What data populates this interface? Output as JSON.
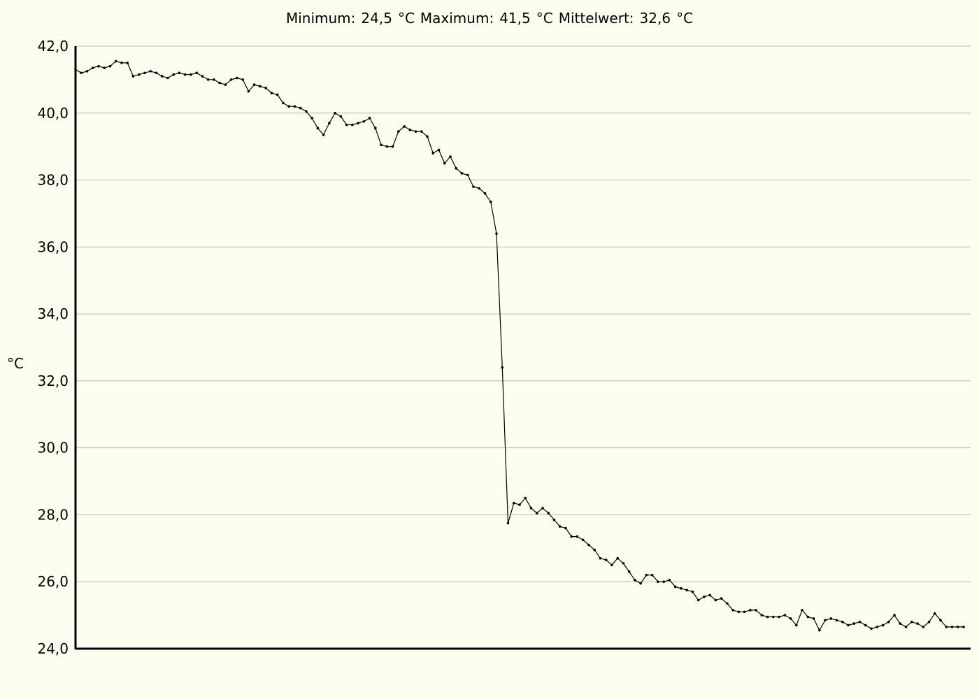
{
  "header": {
    "min_label": "Minimum:",
    "min_value": "24,5",
    "max_label": "Maximum:",
    "max_value": "41,5",
    "mean_label": "Mittelwert:",
    "mean_value": "32,6",
    "unit": "°C"
  },
  "chart_data": {
    "type": "line",
    "title": "Minimum:  24,5  °C Maximum:  41,5  °C Mittelwert:  32,6  °C",
    "xlabel": "",
    "ylabel": "°C",
    "ylim": [
      24,
      42
    ],
    "yticks": [
      24,
      26,
      28,
      30,
      32,
      34,
      36,
      38,
      40,
      42
    ],
    "ytick_labels": [
      "24,0",
      "26,0",
      "28,0",
      "30,0",
      "32,0",
      "34,0",
      "36,0",
      "38,0",
      "40,0",
      "42,0"
    ],
    "grid": true,
    "marker": "point",
    "line_color": "#000000",
    "background": "#fefef0",
    "grid_color": "#b8b8b0",
    "series": [
      {
        "values": [
          41.3,
          41.2,
          41.25,
          41.35,
          41.4,
          41.35,
          41.4,
          41.55,
          41.5,
          41.5,
          41.1,
          41.15,
          41.2,
          41.25,
          41.2,
          41.1,
          41.05,
          41.15,
          41.2,
          41.15,
          41.15,
          41.2,
          41.1,
          41.0,
          41.0,
          40.9,
          40.85,
          41.0,
          41.05,
          41.0,
          40.65,
          40.85,
          40.8,
          40.75,
          40.6,
          40.55,
          40.3,
          40.2,
          40.2,
          40.15,
          40.05,
          39.85,
          39.55,
          39.35,
          39.7,
          40.0,
          39.9,
          39.65,
          39.65,
          39.7,
          39.75,
          39.85,
          39.55,
          39.05,
          39.0,
          39.0,
          39.45,
          39.6,
          39.5,
          39.45,
          39.45,
          39.3,
          38.8,
          38.9,
          38.5,
          38.7,
          38.35,
          38.2,
          38.15,
          37.8,
          37.75,
          37.6,
          37.35,
          36.4,
          32.4,
          27.75,
          28.35,
          28.3,
          28.5,
          28.2,
          28.05,
          28.2,
          28.05,
          27.85,
          27.65,
          27.6,
          27.35,
          27.35,
          27.25,
          27.1,
          26.95,
          26.7,
          26.65,
          26.5,
          26.7,
          26.55,
          26.3,
          26.05,
          25.95,
          26.2,
          26.2,
          26.0,
          26.0,
          26.05,
          25.85,
          25.8,
          25.75,
          25.7,
          25.45,
          25.55,
          25.6,
          25.45,
          25.5,
          25.35,
          25.15,
          25.1,
          25.1,
          25.15,
          25.15,
          25.0,
          24.95,
          24.95,
          24.95,
          25.0,
          24.9,
          24.7,
          25.15,
          24.95,
          24.9,
          24.55,
          24.85,
          24.9,
          24.85,
          24.8,
          24.7,
          24.75,
          24.8,
          24.7,
          24.6,
          24.65,
          24.7,
          24.8,
          25.0,
          24.75,
          24.65,
          24.8,
          24.75,
          24.65,
          24.8,
          25.05,
          24.85,
          24.65,
          24.65,
          24.65,
          24.65
        ]
      }
    ]
  }
}
